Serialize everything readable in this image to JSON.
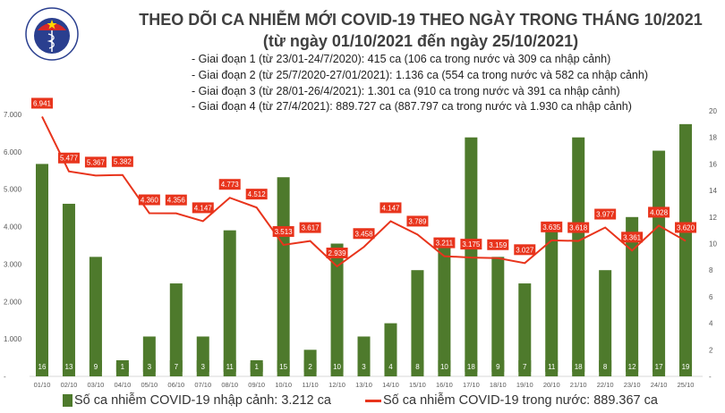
{
  "header": {
    "title": "THEO DÕI CA NHIỄM MỚI COVID-19 THEO NGÀY TRONG THÁNG 10/2021",
    "subtitle": "(từ ngày 01/10/2021 đến ngày 25/10/2021)",
    "phases": [
      "- Giai đoạn 1 (từ 23/01-24/7/2020): 415 ca (106 ca trong nước và 309 ca nhập cảnh)",
      "- Giai đoạn 2 (từ 25/7/2020-27/01/2021): 1.136 ca (554 ca trong nước và 582 ca nhập cảnh)",
      "- Giai đoạn 3 (từ 28/01-26/4/2021): 1.301 ca (910 ca trong nước và 391 ca nhập cảnh)",
      "- Giai đoạn 4 (từ 27/4/2021): 889.727 ca (887.797 ca trong nước và 1.930 ca nhập cảnh)"
    ],
    "logo_text": "BỘ Y TẾ · MINISTRY OF HEALTH"
  },
  "chart_data": {
    "type": "bar+line",
    "categories": [
      "01/10",
      "02/10",
      "03/10",
      "04/10",
      "05/10",
      "06/10",
      "07/10",
      "08/10",
      "09/10",
      "10/10",
      "11/10",
      "12/10",
      "13/10",
      "14/10",
      "15/10",
      "16/10",
      "17/10",
      "18/10",
      "19/10",
      "20/10",
      "21/10",
      "22/10",
      "23/10",
      "24/10",
      "25/10"
    ],
    "series": [
      {
        "name": "Số ca nhiễm COVID-19 nhập cảnh: 3.212 ca",
        "type": "bar",
        "axis": "right",
        "color": "#4e7a2c",
        "values": [
          16,
          13,
          9,
          1,
          3,
          7,
          3,
          11,
          1,
          15,
          2,
          10,
          3,
          4,
          8,
          10,
          18,
          9,
          7,
          11,
          18,
          8,
          12,
          17,
          19
        ]
      },
      {
        "name": "Số ca nhiễm COVID-19 trong nước: 889.367 ca",
        "type": "line",
        "axis": "left",
        "color": "#e8341c",
        "values": [
          6941,
          5477,
          5367,
          5382,
          4360,
          4356,
          4147,
          4773,
          4512,
          3513,
          3617,
          2939,
          3458,
          4147,
          3789,
          3211,
          3175,
          3159,
          3027,
          3635,
          3618,
          3977,
          3361,
          4028,
          3620
        ]
      }
    ],
    "left_axis": {
      "ylim": [
        0,
        7000
      ],
      "ticks": [
        "-",
        "1.000",
        "2.000",
        "3.000",
        "4.000",
        "5.000",
        "6.000",
        "7.000"
      ]
    },
    "right_axis": {
      "ylim": [
        0,
        20
      ],
      "ticks": [
        "-",
        "2",
        "4",
        "6",
        "8",
        "10",
        "12",
        "14",
        "16",
        "18",
        "20"
      ]
    },
    "legend": "bottom"
  }
}
